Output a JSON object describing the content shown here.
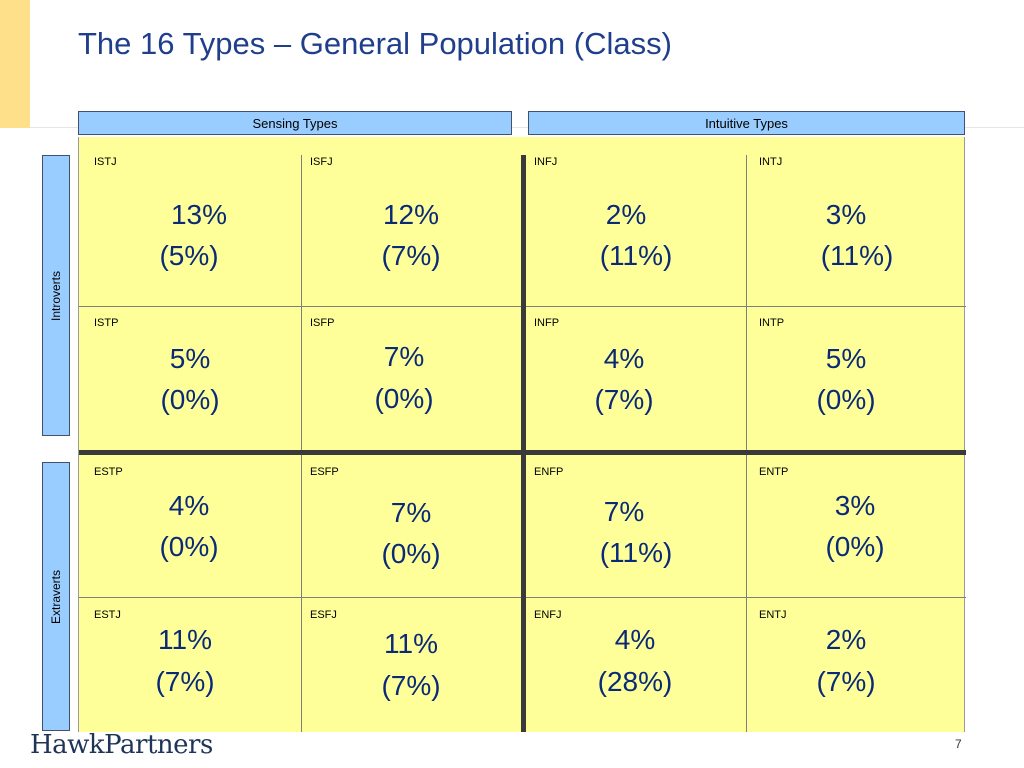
{
  "title": "The 16 Types – General Population (Class)",
  "columns": {
    "sensing": "Sensing Types",
    "intuitive": "Intuitive Types"
  },
  "rows": {
    "introverts": "Introverts",
    "extraverts": "Extraverts"
  },
  "cells": [
    {
      "type": "ISTJ",
      "general": "13%",
      "class": "(5%)"
    },
    {
      "type": "ISFJ",
      "general": "12%",
      "class": "(7%)"
    },
    {
      "type": "INFJ",
      "general": "2%",
      "class": "(11%)"
    },
    {
      "type": "INTJ",
      "general": "3%",
      "class": "(11%)"
    },
    {
      "type": "ISTP",
      "general": "5%",
      "class": "(0%)"
    },
    {
      "type": "ISFP",
      "general": "7%",
      "class": "(0%)"
    },
    {
      "type": "INFP",
      "general": "4%",
      "class": "(7%)"
    },
    {
      "type": "INTP",
      "general": "5%",
      "class": "(0%)"
    },
    {
      "type": "ESTP",
      "general": "4%",
      "class": "(0%)"
    },
    {
      "type": "ESFP",
      "general": "7%",
      "class": "(0%)"
    },
    {
      "type": "ENFP",
      "general": "7%",
      "class": "(11%)"
    },
    {
      "type": "ENTP",
      "general": "3%",
      "class": "(0%)"
    },
    {
      "type": "ESTJ",
      "general": "11%",
      "class": "(7%)"
    },
    {
      "type": "ESFJ",
      "general": "11%",
      "class": "(7%)"
    },
    {
      "type": "ENFJ",
      "general": "4%",
      "class": "(28%)"
    },
    {
      "type": "ENTJ",
      "general": "2%",
      "class": "(7%)"
    }
  ],
  "footer": {
    "logo": "HawkPartners",
    "page_number": "7"
  },
  "colors": {
    "title": "#1f3f8c",
    "header_fill": "#99ccff",
    "cell_fill": "#ffff99",
    "value_text": "#0a2a78"
  }
}
